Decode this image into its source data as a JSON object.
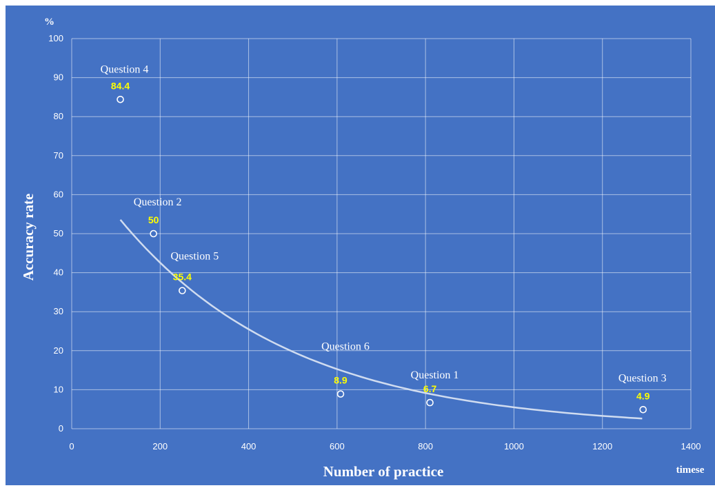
{
  "chart_data": {
    "type": "scatter",
    "title": "",
    "xlabel": "Number of practice",
    "ylabel": "Accuracy rate",
    "x_unit": "timese",
    "y_unit": "%",
    "xlim": [
      0,
      1400
    ],
    "ylim": [
      0,
      100
    ],
    "x_ticks": [
      0,
      200,
      400,
      600,
      800,
      1000,
      1200,
      1400
    ],
    "y_ticks": [
      0,
      10,
      20,
      30,
      40,
      50,
      60,
      70,
      80,
      90,
      100
    ],
    "grid": true,
    "colors": {
      "background": "#4472C4",
      "points": "#FFFFFF",
      "value_labels": "#FFFF00",
      "trendline": "#D0DCF0"
    },
    "points": [
      {
        "name": "Question 4",
        "x": 110,
        "y": 84.4,
        "value_label": "84.4"
      },
      {
        "name": "Question 2",
        "x": 185,
        "y": 50,
        "value_label": "50"
      },
      {
        "name": "Question 5",
        "x": 250,
        "y": 35.4,
        "value_label": "35.4"
      },
      {
        "name": "Question 6",
        "x": 608,
        "y": 8.9,
        "value_label": "8.9"
      },
      {
        "name": "Question 1",
        "x": 810,
        "y": 6.7,
        "value_label": "6.7"
      },
      {
        "name": "Question 3",
        "x": 1292,
        "y": 4.9,
        "value_label": "4.9"
      }
    ],
    "trendline": {
      "type": "exponential",
      "x_range": [
        110,
        1290
      ],
      "fit": {
        "a": 71.0,
        "b": -0.00256
      }
    }
  }
}
